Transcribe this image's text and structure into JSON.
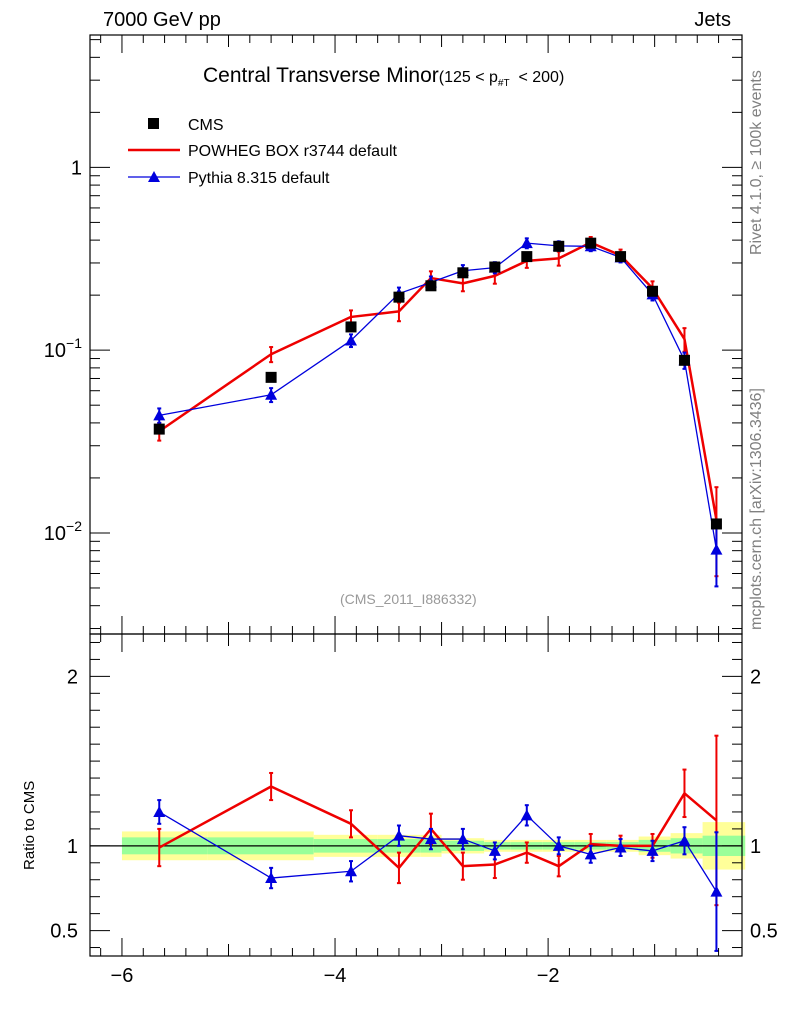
{
  "header": {
    "left": "7000 GeV pp",
    "right": "Jets"
  },
  "side_labels": {
    "top": "Rivet 4.1.0, ≥ 100k events",
    "bottom": "mcplots.cern.ch [arXiv:1306.3436]"
  },
  "ratio_ylabel": "Ratio to CMS",
  "chart_data": [
    {
      "type": "line",
      "panel": "main",
      "title": "Central Transverse Minor",
      "title_suffix_parts": [
        "(125 < p",
        "#T",
        "< 200)"
      ],
      "watermark": "(CMS_2011_I886332)",
      "yscale": "log",
      "xlim": [
        -6.3,
        -0.18
      ],
      "ylim": [
        0.0028,
        5.3
      ],
      "xticks": [
        -6,
        -4,
        -2
      ],
      "xticklabels": [
        "−6",
        "−4",
        "−2"
      ],
      "yticks": [
        0.01,
        0.1,
        1
      ],
      "yticklabels": [
        {
          "base": "10",
          "exp": "−2"
        },
        {
          "base": "10",
          "exp": "−1"
        },
        {
          "base": "1",
          "exp": ""
        }
      ],
      "legend": [
        "CMS",
        "POWHEG BOX r3744 default",
        "Pythia 8.315 default"
      ],
      "series": [
        {
          "name": "CMS",
          "style": "marker-square",
          "color": "#000000",
          "x": [
            -5.65,
            -4.6,
            -3.85,
            -3.4,
            -3.1,
            -2.8,
            -2.5,
            -2.2,
            -1.9,
            -1.6,
            -1.32,
            -1.02,
            -0.72,
            -0.42
          ],
          "y": [
            0.037,
            0.071,
            0.134,
            0.195,
            0.225,
            0.265,
            0.285,
            0.325,
            0.37,
            0.385,
            0.325,
            0.21,
            0.088,
            0.0112
          ]
        },
        {
          "name": "POWHEG BOX r3744 default",
          "style": "line",
          "color": "#ee0000",
          "x": [
            -5.65,
            -4.6,
            -3.85,
            -3.4,
            -3.1,
            -2.8,
            -2.5,
            -2.2,
            -1.9,
            -1.6,
            -1.32,
            -1.02,
            -0.72,
            -0.42
          ],
          "y": [
            0.036,
            0.095,
            0.152,
            0.163,
            0.248,
            0.232,
            0.255,
            0.308,
            0.318,
            0.388,
            0.33,
            0.218,
            0.115,
            0.0118
          ],
          "err": [
            0.004,
            0.009,
            0.013,
            0.019,
            0.022,
            0.022,
            0.024,
            0.026,
            0.028,
            0.028,
            0.025,
            0.02,
            0.017,
            0.006
          ]
        },
        {
          "name": "Pythia 8.315 default",
          "style": "line-triangle",
          "color": "#0000dd",
          "x": [
            -5.65,
            -4.6,
            -3.85,
            -3.4,
            -3.1,
            -2.8,
            -2.5,
            -2.2,
            -1.9,
            -1.6,
            -1.32,
            -1.02,
            -0.72,
            -0.42
          ],
          "y": [
            0.044,
            0.057,
            0.113,
            0.204,
            0.235,
            0.272,
            0.283,
            0.385,
            0.372,
            0.37,
            0.322,
            0.202,
            0.088,
            0.0081
          ],
          "err": [
            0.004,
            0.005,
            0.009,
            0.016,
            0.018,
            0.02,
            0.02,
            0.024,
            0.022,
            0.022,
            0.02,
            0.015,
            0.009,
            0.003
          ]
        }
      ]
    },
    {
      "type": "line",
      "panel": "ratio",
      "ylabel": "Ratio to CMS",
      "xlim": [
        -6.3,
        -0.18
      ],
      "ylim": [
        0.35,
        2.25
      ],
      "yticks": [
        0.5,
        1,
        2
      ],
      "yticklabels": [
        "0.5",
        "1",
        "2"
      ],
      "right_yticklabels": [
        "0.5",
        "1",
        "2"
      ],
      "xticklabels": [
        "−6",
        "−4",
        "−2"
      ],
      "bands": {
        "bin_edges": [
          -6.0,
          -5.2,
          -4.2,
          -3.6,
          -3.2,
          -3.0,
          -2.6,
          -2.35,
          -2.05,
          -1.75,
          -1.45,
          -1.15,
          -0.85,
          -0.55,
          -0.15
        ],
        "yellow": [
          0.085,
          0.085,
          0.065,
          0.065,
          0.065,
          0.045,
          0.035,
          0.035,
          0.035,
          0.035,
          0.035,
          0.055,
          0.075,
          0.14
        ],
        "green": [
          0.05,
          0.05,
          0.04,
          0.04,
          0.04,
          0.03,
          0.022,
          0.022,
          0.022,
          0.022,
          0.022,
          0.035,
          0.045,
          0.06
        ]
      },
      "series": [
        {
          "name": "POWHEG BOX r3744 default",
          "color": "#ee0000",
          "x": [
            -5.65,
            -4.6,
            -3.85,
            -3.4,
            -3.1,
            -2.8,
            -2.5,
            -2.2,
            -1.9,
            -1.6,
            -1.32,
            -1.02,
            -0.72,
            -0.42
          ],
          "y": [
            0.99,
            1.35,
            1.13,
            0.87,
            1.1,
            0.88,
            0.89,
            0.96,
            0.88,
            1.01,
            1.0,
            1.0,
            1.31,
            1.15
          ],
          "err": [
            0.11,
            0.08,
            0.08,
            0.09,
            0.09,
            0.08,
            0.08,
            0.06,
            0.06,
            0.06,
            0.06,
            0.07,
            0.14,
            0.5
          ]
        },
        {
          "name": "Pythia 8.315 default",
          "color": "#0000dd",
          "x": [
            -5.65,
            -4.6,
            -3.85,
            -3.4,
            -3.1,
            -2.8,
            -2.5,
            -2.2,
            -1.9,
            -1.6,
            -1.32,
            -1.02,
            -0.72,
            -0.42
          ],
          "y": [
            1.2,
            0.81,
            0.85,
            1.06,
            1.04,
            1.04,
            0.97,
            1.18,
            1.0,
            0.95,
            0.99,
            0.97,
            1.03,
            0.73
          ],
          "err": [
            0.07,
            0.06,
            0.06,
            0.06,
            0.06,
            0.06,
            0.05,
            0.06,
            0.05,
            0.05,
            0.05,
            0.06,
            0.08,
            0.35
          ]
        }
      ]
    }
  ]
}
